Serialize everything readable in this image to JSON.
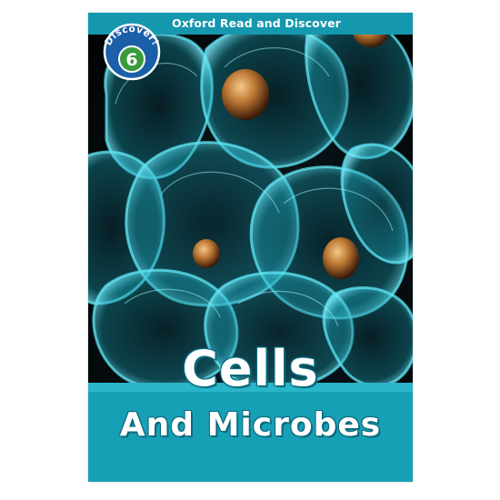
{
  "cover": {
    "series_title": "Oxford Read and Discover",
    "badge": {
      "label": "Discover!",
      "level": "6"
    },
    "title": "Cells",
    "subtitle": "And Microbes",
    "colors": {
      "accent": "#1597ad",
      "badge_blue": "#1b5fa8",
      "badge_green": "#3a9a3c",
      "background": "#06080a"
    }
  }
}
